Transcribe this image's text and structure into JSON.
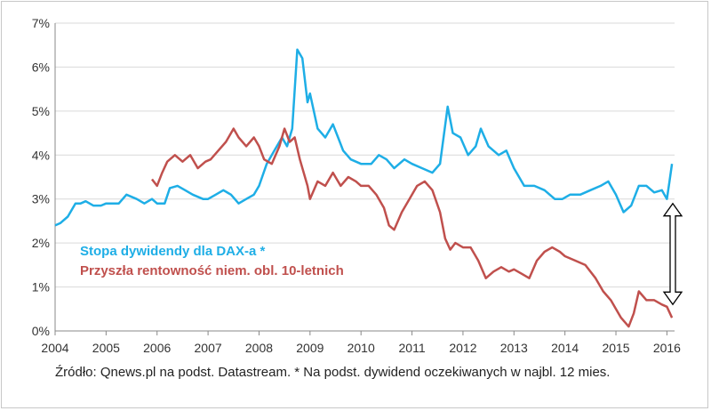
{
  "chart_data": {
    "type": "line",
    "title": "",
    "xlabel": "",
    "ylabel": "",
    "xlim": [
      2004.0,
      2016.15
    ],
    "ylim": [
      0,
      7
    ],
    "x_ticks": [
      2004,
      2005,
      2006,
      2007,
      2008,
      2009,
      2010,
      2011,
      2012,
      2013,
      2014,
      2015,
      2016
    ],
    "x_tick_labels": [
      "2004",
      "2005",
      "2006",
      "2007",
      "2008",
      "2009",
      "2010",
      "2011",
      "2012",
      "2013",
      "2014",
      "2015",
      "2016"
    ],
    "y_ticks": [
      0,
      1,
      2,
      3,
      4,
      5,
      6,
      7
    ],
    "y_tick_labels": [
      "0%",
      "1%",
      "2%",
      "3%",
      "4%",
      "5%",
      "6%",
      "7%"
    ],
    "grid": "horizontal",
    "legend_position": "left-inside",
    "series": [
      {
        "name": "Stopa dywidendy dla DAX-a *",
        "color": "#1eaee6",
        "points": [
          [
            2004.0,
            2.4
          ],
          [
            2004.1,
            2.45
          ],
          [
            2004.25,
            2.6
          ],
          [
            2004.4,
            2.9
          ],
          [
            2004.5,
            2.9
          ],
          [
            2004.6,
            2.95
          ],
          [
            2004.75,
            2.85
          ],
          [
            2004.9,
            2.85
          ],
          [
            2005.0,
            2.9
          ],
          [
            2005.25,
            2.9
          ],
          [
            2005.4,
            3.1
          ],
          [
            2005.6,
            3.0
          ],
          [
            2005.75,
            2.9
          ],
          [
            2005.9,
            3.0
          ],
          [
            2006.0,
            2.9
          ],
          [
            2006.15,
            2.9
          ],
          [
            2006.25,
            3.25
          ],
          [
            2006.4,
            3.3
          ],
          [
            2006.55,
            3.2
          ],
          [
            2006.7,
            3.1
          ],
          [
            2006.9,
            3.0
          ],
          [
            2007.0,
            3.0
          ],
          [
            2007.15,
            3.1
          ],
          [
            2007.3,
            3.2
          ],
          [
            2007.45,
            3.1
          ],
          [
            2007.6,
            2.9
          ],
          [
            2007.75,
            3.0
          ],
          [
            2007.9,
            3.1
          ],
          [
            2008.0,
            3.3
          ],
          [
            2008.15,
            3.8
          ],
          [
            2008.3,
            4.1
          ],
          [
            2008.45,
            4.4
          ],
          [
            2008.55,
            4.2
          ],
          [
            2008.65,
            4.6
          ],
          [
            2008.75,
            6.4
          ],
          [
            2008.85,
            6.2
          ],
          [
            2008.95,
            5.2
          ],
          [
            2009.0,
            5.4
          ],
          [
            2009.15,
            4.6
          ],
          [
            2009.3,
            4.4
          ],
          [
            2009.45,
            4.7
          ],
          [
            2009.55,
            4.4
          ],
          [
            2009.65,
            4.1
          ],
          [
            2009.8,
            3.9
          ],
          [
            2010.0,
            3.8
          ],
          [
            2010.2,
            3.8
          ],
          [
            2010.35,
            4.0
          ],
          [
            2010.5,
            3.9
          ],
          [
            2010.65,
            3.7
          ],
          [
            2010.85,
            3.9
          ],
          [
            2011.0,
            3.8
          ],
          [
            2011.2,
            3.7
          ],
          [
            2011.4,
            3.6
          ],
          [
            2011.55,
            3.8
          ],
          [
            2011.7,
            5.1
          ],
          [
            2011.8,
            4.5
          ],
          [
            2011.95,
            4.4
          ],
          [
            2012.1,
            4.0
          ],
          [
            2012.25,
            4.2
          ],
          [
            2012.35,
            4.6
          ],
          [
            2012.5,
            4.2
          ],
          [
            2012.7,
            4.0
          ],
          [
            2012.85,
            4.1
          ],
          [
            2013.0,
            3.7
          ],
          [
            2013.2,
            3.3
          ],
          [
            2013.4,
            3.3
          ],
          [
            2013.6,
            3.2
          ],
          [
            2013.8,
            3.0
          ],
          [
            2013.95,
            3.0
          ],
          [
            2014.1,
            3.1
          ],
          [
            2014.3,
            3.1
          ],
          [
            2014.5,
            3.2
          ],
          [
            2014.7,
            3.3
          ],
          [
            2014.85,
            3.4
          ],
          [
            2015.0,
            3.1
          ],
          [
            2015.15,
            2.7
          ],
          [
            2015.3,
            2.85
          ],
          [
            2015.45,
            3.3
          ],
          [
            2015.6,
            3.3
          ],
          [
            2015.75,
            3.15
          ],
          [
            2015.9,
            3.2
          ],
          [
            2016.0,
            3.0
          ],
          [
            2016.05,
            3.4
          ],
          [
            2016.1,
            3.8
          ]
        ]
      },
      {
        "name": "Przyszła rentowność niem. obl. 10-letnich",
        "color": "#c0504d",
        "points": [
          [
            2005.9,
            3.45
          ],
          [
            2006.0,
            3.3
          ],
          [
            2006.1,
            3.6
          ],
          [
            2006.2,
            3.85
          ],
          [
            2006.35,
            4.0
          ],
          [
            2006.5,
            3.85
          ],
          [
            2006.65,
            4.0
          ],
          [
            2006.8,
            3.7
          ],
          [
            2006.95,
            3.85
          ],
          [
            2007.05,
            3.9
          ],
          [
            2007.2,
            4.1
          ],
          [
            2007.35,
            4.3
          ],
          [
            2007.5,
            4.6
          ],
          [
            2007.6,
            4.4
          ],
          [
            2007.75,
            4.2
          ],
          [
            2007.9,
            4.4
          ],
          [
            2008.0,
            4.2
          ],
          [
            2008.1,
            3.9
          ],
          [
            2008.25,
            3.8
          ],
          [
            2008.4,
            4.2
          ],
          [
            2008.5,
            4.6
          ],
          [
            2008.6,
            4.3
          ],
          [
            2008.7,
            4.4
          ],
          [
            2008.8,
            3.9
          ],
          [
            2008.95,
            3.3
          ],
          [
            2009.0,
            3.0
          ],
          [
            2009.15,
            3.4
          ],
          [
            2009.3,
            3.3
          ],
          [
            2009.45,
            3.6
          ],
          [
            2009.6,
            3.3
          ],
          [
            2009.75,
            3.5
          ],
          [
            2009.9,
            3.4
          ],
          [
            2010.0,
            3.3
          ],
          [
            2010.15,
            3.3
          ],
          [
            2010.3,
            3.1
          ],
          [
            2010.45,
            2.8
          ],
          [
            2010.55,
            2.4
          ],
          [
            2010.65,
            2.3
          ],
          [
            2010.8,
            2.7
          ],
          [
            2010.95,
            3.0
          ],
          [
            2011.1,
            3.3
          ],
          [
            2011.25,
            3.4
          ],
          [
            2011.4,
            3.2
          ],
          [
            2011.55,
            2.7
          ],
          [
            2011.65,
            2.1
          ],
          [
            2011.75,
            1.85
          ],
          [
            2011.85,
            2.0
          ],
          [
            2012.0,
            1.9
          ],
          [
            2012.15,
            1.9
          ],
          [
            2012.3,
            1.6
          ],
          [
            2012.45,
            1.2
          ],
          [
            2012.6,
            1.35
          ],
          [
            2012.75,
            1.45
          ],
          [
            2012.9,
            1.35
          ],
          [
            2013.0,
            1.4
          ],
          [
            2013.15,
            1.3
          ],
          [
            2013.3,
            1.2
          ],
          [
            2013.45,
            1.6
          ],
          [
            2013.6,
            1.8
          ],
          [
            2013.75,
            1.9
          ],
          [
            2013.9,
            1.8
          ],
          [
            2014.0,
            1.7
          ],
          [
            2014.2,
            1.6
          ],
          [
            2014.4,
            1.5
          ],
          [
            2014.6,
            1.2
          ],
          [
            2014.75,
            0.9
          ],
          [
            2014.9,
            0.7
          ],
          [
            2015.0,
            0.5
          ],
          [
            2015.1,
            0.3
          ],
          [
            2015.25,
            0.1
          ],
          [
            2015.35,
            0.4
          ],
          [
            2015.45,
            0.9
          ],
          [
            2015.6,
            0.7
          ],
          [
            2015.75,
            0.7
          ],
          [
            2015.9,
            0.6
          ],
          [
            2016.0,
            0.55
          ],
          [
            2016.1,
            0.3
          ]
        ]
      }
    ],
    "annotations": [
      {
        "type": "double-arrow",
        "x": 2016.15,
        "y_from": 0.6,
        "y_to": 2.9
      }
    ]
  },
  "source_note": "Źródło: Qnews.pl na podst. Datastream. * Na podst. dywidend oczekiwanych w najbl. 12 mies."
}
